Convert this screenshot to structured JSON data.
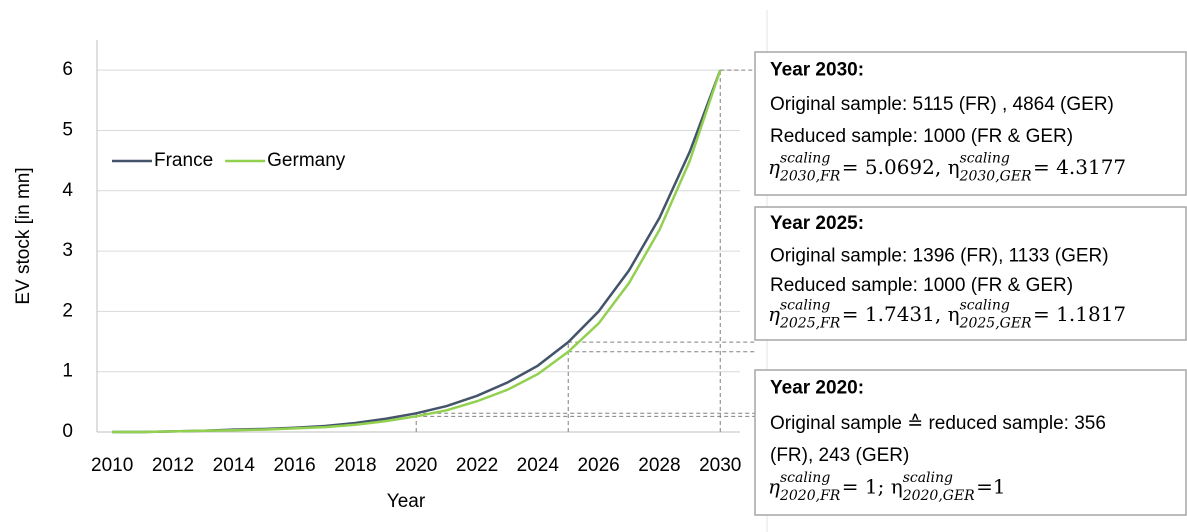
{
  "chart_data": {
    "type": "line",
    "x": [
      2010,
      2011,
      2012,
      2013,
      2014,
      2015,
      2016,
      2017,
      2018,
      2019,
      2020,
      2021,
      2022,
      2023,
      2024,
      2025,
      2026,
      2027,
      2028,
      2029,
      2030
    ],
    "series": [
      {
        "name": "France",
        "color": "#44546a",
        "values": [
          0,
          0,
          0.01,
          0.02,
          0.04,
          0.05,
          0.07,
          0.1,
          0.15,
          0.22,
          0.31,
          0.43,
          0.6,
          0.82,
          1.1,
          1.49,
          2.0,
          2.68,
          3.55,
          4.65,
          6.0
        ]
      },
      {
        "name": "Germany",
        "color": "#92d050",
        "values": [
          0,
          0,
          0.01,
          0.02,
          0.03,
          0.04,
          0.06,
          0.08,
          0.12,
          0.18,
          0.26,
          0.36,
          0.51,
          0.7,
          0.96,
          1.33,
          1.8,
          2.47,
          3.35,
          4.5,
          6.0
        ]
      }
    ],
    "xlim": [
      2009.5,
      2030.65
    ],
    "xticks": [
      2010,
      2012,
      2014,
      2016,
      2018,
      2020,
      2022,
      2024,
      2026,
      2028,
      2030
    ],
    "ylim": [
      0,
      6.5
    ],
    "yticks": [
      0,
      1,
      2,
      3,
      4,
      5,
      6
    ],
    "xlabel": "Year",
    "ylabel": "EV stock [in mn]",
    "grid": true,
    "annotations": [
      {
        "year": 2030,
        "title": "Year 2030:",
        "lines": [
          "Original sample: 5115 (FR) , 4864 (GER)",
          "Reduced sample: 1000 (FR & GER)"
        ],
        "formula": [
          {
            "text": "η"
          },
          {
            "sup": "scaling",
            "sub": "2030,FR"
          },
          {
            "text": " = 5.0692, η"
          },
          {
            "sup": "scaling",
            "sub": "2030,GER"
          },
          {
            "text": " = 4.3177"
          }
        ]
      },
      {
        "year": 2025,
        "title": "Year 2025:",
        "lines": [
          "Original sample: 1396 (FR), 1133 (GER)",
          "Reduced sample: 1000 (FR & GER)"
        ],
        "formula": [
          {
            "text": "η"
          },
          {
            "sup": "scaling",
            "sub": "2025,FR"
          },
          {
            "text": " = 1.7431, η"
          },
          {
            "sup": "scaling",
            "sub": "2025,GER"
          },
          {
            "text": " = 1.1817"
          }
        ]
      },
      {
        "year": 2020,
        "title": "Year 2020:",
        "lines": [
          "Original sample ≙ reduced sample: 356",
          "(FR), 243 (GER)"
        ],
        "formula": [
          {
            "text": "η"
          },
          {
            "sup": "scaling",
            "sub": "2020,FR"
          },
          {
            "text": " = 1; η"
          },
          {
            "sup": "scaling",
            "sub": "2020,GER"
          },
          {
            "text": " =1"
          }
        ]
      }
    ]
  }
}
